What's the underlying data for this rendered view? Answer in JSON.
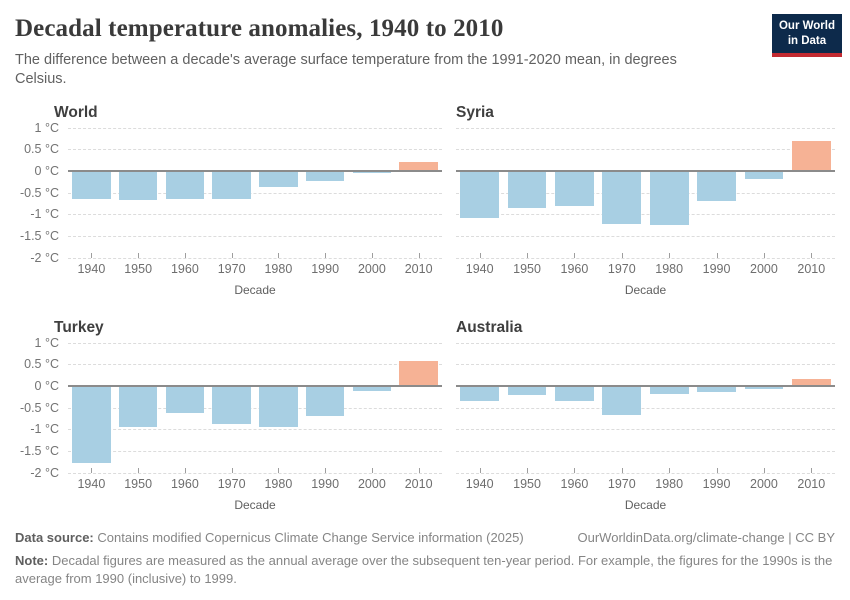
{
  "header": {
    "title": "Decadal temperature anomalies, 1940 to 2010",
    "subtitle": "The difference between a decade's average surface temperature from the 1991-2020 mean, in degrees Celsius.",
    "logo": {
      "line1": "Our World",
      "line2": "in Data"
    }
  },
  "colors": {
    "positive_bar": "#F6B295",
    "negative_bar": "#A8CFE3",
    "zero_line": "#8B8B8B",
    "gridline": "#DCDCDC",
    "logo_navy": "#0D2A4B",
    "logo_red": "#C32A31"
  },
  "y_axis": {
    "ticks": [
      {
        "label": "1 °C",
        "value": 1
      },
      {
        "label": "0.5 °C",
        "value": 0.5
      },
      {
        "label": "0 °C",
        "value": 0
      },
      {
        "label": "-0.5 °C",
        "value": -0.5
      },
      {
        "label": "-1 °C",
        "value": -1
      },
      {
        "label": "-1.5 °C",
        "value": -1.5
      },
      {
        "label": "-2 °C",
        "value": -2
      }
    ]
  },
  "chart_data": [
    {
      "type": "bar",
      "title": "World",
      "categories": [
        "1940",
        "1950",
        "1960",
        "1970",
        "1980",
        "1990",
        "2000",
        "2010"
      ],
      "values": [
        -0.66,
        -0.68,
        -0.65,
        -0.65,
        -0.38,
        -0.24,
        -0.04,
        0.2
      ],
      "xlabel": "Decade",
      "ylabel": "",
      "ylim": [
        -2,
        1
      ],
      "grid": true,
      "show_y_labels": true
    },
    {
      "type": "bar",
      "title": "Syria",
      "categories": [
        "1940",
        "1950",
        "1960",
        "1970",
        "1980",
        "1990",
        "2000",
        "2010"
      ],
      "values": [
        -1.1,
        -0.85,
        -0.82,
        -1.22,
        -1.24,
        -0.69,
        -0.18,
        0.69
      ],
      "xlabel": "Decade",
      "ylabel": "",
      "ylim": [
        -2,
        1
      ],
      "grid": true,
      "show_y_labels": false
    },
    {
      "type": "bar",
      "title": "Turkey",
      "categories": [
        "1940",
        "1950",
        "1960",
        "1970",
        "1980",
        "1990",
        "2000",
        "2010"
      ],
      "values": [
        -1.78,
        -0.96,
        -0.63,
        -0.89,
        -0.96,
        -0.69,
        -0.12,
        0.58
      ],
      "xlabel": "Decade",
      "ylabel": "",
      "ylim": [
        -2,
        1
      ],
      "grid": true,
      "show_y_labels": true
    },
    {
      "type": "bar",
      "title": "Australia",
      "categories": [
        "1940",
        "1950",
        "1960",
        "1970",
        "1980",
        "1990",
        "2000",
        "2010"
      ],
      "values": [
        -0.34,
        -0.21,
        -0.34,
        -0.67,
        -0.19,
        -0.15,
        -0.07,
        0.16
      ],
      "xlabel": "Decade",
      "ylabel": "",
      "ylim": [
        -2,
        1
      ],
      "grid": true,
      "show_y_labels": false
    }
  ],
  "footer": {
    "data_source_label": "Data source:",
    "data_source_text": "Contains modified Copernicus Climate Change Service information (2025)",
    "credit_link": "OurWorldinData.org/climate-change",
    "credit_suffix": "| CC BY",
    "note_label": "Note:",
    "note_text": "Decadal figures are measured as the annual average over the subsequent ten-year period. For example, the figures for the 1990s is the average from 1990 (inclusive) to 1999."
  }
}
